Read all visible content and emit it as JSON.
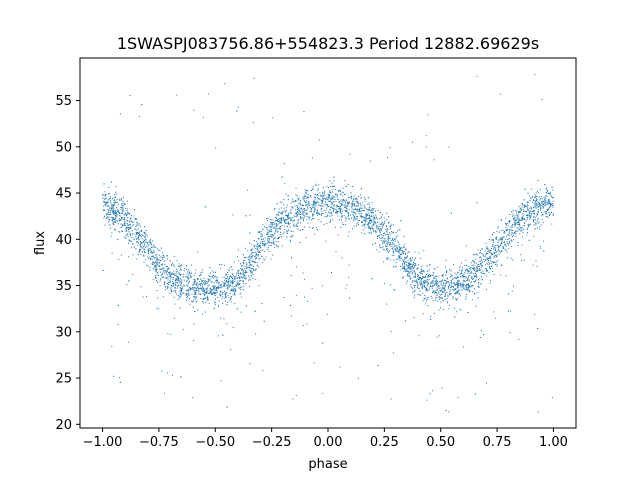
{
  "chart_data": {
    "type": "scatter",
    "title": "1SWASPJ083756.86+554823.3 Period 12882.69629s",
    "xlabel": "phase",
    "ylabel": "flux",
    "xlim": [
      -1.1,
      1.1
    ],
    "ylim": [
      19.6,
      59.6
    ],
    "xticks": [
      -1.0,
      -0.75,
      -0.5,
      -0.25,
      0.0,
      0.25,
      0.5,
      0.75,
      1.0
    ],
    "xtick_labels": [
      "−1.00",
      "−0.75",
      "−0.50",
      "−0.25",
      "0.00",
      "0.25",
      "0.50",
      "0.75",
      "1.00"
    ],
    "yticks": [
      20,
      25,
      30,
      35,
      40,
      45,
      50,
      55
    ],
    "ytick_labels": [
      "20",
      "25",
      "30",
      "35",
      "40",
      "45",
      "50",
      "55"
    ],
    "grid": false,
    "legend": "none",
    "marker_color": "#1f77b4",
    "series": [
      {
        "x": [
          -1.0,
          -0.9,
          -0.8,
          -0.75,
          -0.7,
          -0.6,
          -0.5,
          -0.4,
          -0.3,
          -0.25,
          -0.2,
          -0.1,
          0.0,
          0.1,
          0.2,
          0.25,
          0.3,
          0.4,
          0.5,
          0.6,
          0.7,
          0.75,
          0.8,
          0.9,
          1.0
        ],
        "y": [
          44.0,
          42.2,
          38.8,
          37.2,
          36.0,
          34.9,
          34.6,
          35.4,
          39.4,
          40.6,
          42.0,
          43.4,
          44.0,
          43.4,
          42.0,
          40.6,
          39.2,
          35.8,
          34.6,
          35.2,
          37.4,
          39.0,
          40.8,
          43.2,
          44.0
        ]
      }
    ]
  }
}
